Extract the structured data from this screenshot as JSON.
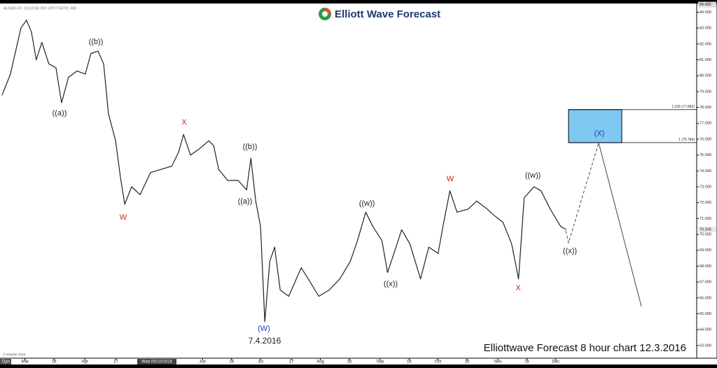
{
  "chart_data": {
    "type": "line",
    "title": "Elliott Wave Forecast",
    "subtitle": "AUGAG-FX, GOLD/SILVER SPOT RATIO, 480",
    "footer": "Elliottwave Forecast 8 hour chart 12.3.2016",
    "copyright": "© eSignal, 2016",
    "corner_label": "Dyn",
    "cursor_label": "Wed 05/10/2016",
    "xlim": [
      -13,
      348
    ],
    "ylim": [
      62.2,
      84.55
    ],
    "xticks": [
      {
        "value": 0,
        "label": "Mar"
      },
      {
        "value": 15,
        "label": "16"
      },
      {
        "value": 31,
        "label": "Apr"
      },
      {
        "value": 47,
        "label": "17"
      },
      {
        "value": 92,
        "label": "Jun"
      },
      {
        "value": 107,
        "label": "16"
      },
      {
        "value": 122,
        "label": "Jul"
      },
      {
        "value": 138,
        "label": "17"
      },
      {
        "value": 153,
        "label": "Aug"
      },
      {
        "value": 168,
        "label": "16"
      },
      {
        "value": 184,
        "label": "Sep"
      },
      {
        "value": 199,
        "label": "16"
      },
      {
        "value": 214,
        "label": "Oct"
      },
      {
        "value": 229,
        "label": "16"
      },
      {
        "value": 245,
        "label": "Nov"
      },
      {
        "value": 260,
        "label": "16"
      },
      {
        "value": 275,
        "label": "Dec"
      }
    ],
    "yticks": [
      {
        "value": 63,
        "label": "63.000"
      },
      {
        "value": 64,
        "label": "64.000"
      },
      {
        "value": 65,
        "label": "65.000"
      },
      {
        "value": 66,
        "label": "66.000"
      },
      {
        "value": 67,
        "label": "67.000"
      },
      {
        "value": 68,
        "label": "68.000"
      },
      {
        "value": 69,
        "label": "69.000"
      },
      {
        "value": 70,
        "label": "70.000"
      },
      {
        "value": 71,
        "label": "71.000"
      },
      {
        "value": 72,
        "label": "72.000"
      },
      {
        "value": 73,
        "label": "73.000"
      },
      {
        "value": 74,
        "label": "74.000"
      },
      {
        "value": 75,
        "label": "75.000"
      },
      {
        "value": 76,
        "label": "76.000"
      },
      {
        "value": 77,
        "label": "77.000"
      },
      {
        "value": 78,
        "label": "78.000"
      },
      {
        "value": 79,
        "label": "79.000"
      },
      {
        "value": 80,
        "label": "80.000"
      },
      {
        "value": 81,
        "label": "81.000"
      },
      {
        "value": 82,
        "label": "82.000"
      },
      {
        "value": 83,
        "label": "83.000"
      },
      {
        "value": 84,
        "label": "84.000"
      }
    ],
    "high_label": {
      "value": 84.482,
      "label": "84.482"
    },
    "last_price": {
      "value": 70.305,
      "label": "70.305"
    },
    "series": [
      {
        "name": "AUGAG-FX",
        "color": "#222222",
        "x": [
          -12,
          -7.6,
          -2.2,
          0.7,
          3.3,
          5.8,
          8.7,
          12.3,
          16,
          18.9,
          22.5,
          26.9,
          31.2,
          34.1,
          37.8,
          40.7,
          43.2,
          46.9,
          49.4,
          51.6,
          55.2,
          59.6,
          65,
          70.5,
          76,
          79.6,
          82.1,
          85.7,
          90.4,
          95.2,
          97.7,
          100.3,
          105,
          110.4,
          114.8,
          117,
          119.5,
          122,
          124.2,
          126.8,
          129.3,
          132.2,
          136.6,
          143.1,
          146.7,
          152.2,
          157.6,
          163.1,
          168.5,
          172.2,
          176.5,
          180.2,
          184.9,
          187.8,
          192.2,
          195.1,
          199.4,
          204.9,
          209.2,
          214,
          216.5,
          220.1,
          223.8,
          229.6,
          234,
          239.4,
          243,
          247.7,
          252.1,
          255.7,
          258.6,
          263.7,
          267.3,
          272.1,
          277.5,
          280.4
        ],
        "values": [
          78.76,
          80.1,
          83,
          83.5,
          82.75,
          81,
          82.1,
          80.75,
          80.5,
          78.3,
          79.9,
          80.3,
          80.1,
          81.4,
          81.55,
          80.75,
          77.6,
          75.9,
          73.6,
          71.9,
          73,
          72.5,
          73.9,
          74.1,
          74.3,
          75.2,
          76.3,
          75,
          75.4,
          75.9,
          75.6,
          74.1,
          73.4,
          73.4,
          72.8,
          74.8,
          72.1,
          70.5,
          64.5,
          68.3,
          69.2,
          66.5,
          66.1,
          67.9,
          67.2,
          66.1,
          66.5,
          67.2,
          68.3,
          69.6,
          71.4,
          70.5,
          69.6,
          67.6,
          69.2,
          70.3,
          69.4,
          67.2,
          69.2,
          68.8,
          70.5,
          72.75,
          71.4,
          71.6,
          72.1,
          71.6,
          71.2,
          70.75,
          69.4,
          67.2,
          72.3,
          73,
          72.75,
          71.6,
          70.5,
          70.305
        ]
      }
    ],
    "fib_levels": [
      {
        "value": 77.862,
        "label": "1.236 (77.862)"
      },
      {
        "value": 75.784,
        "label": "1 (75.784)"
      }
    ],
    "target_box_color": "#7ec8f2",
    "annotations": [
      {
        "text": "((a))",
        "color": "#222222"
      },
      {
        "text": "((b))",
        "color": "#222222"
      },
      {
        "text": "W",
        "color": "#d0201a"
      },
      {
        "text": "X",
        "color": "#d0201a"
      },
      {
        "text": "((b))",
        "color": "#222222"
      },
      {
        "text": "((a))",
        "color": "#222222"
      },
      {
        "text": "(W)",
        "color": "#1f3fae"
      },
      {
        "text": "7.4.2016",
        "color": "#222222"
      },
      {
        "text": "((w))",
        "color": "#222222"
      },
      {
        "text": "((x))",
        "color": "#222222"
      },
      {
        "text": "W",
        "color": "#d0201a"
      },
      {
        "text": "((w))",
        "color": "#222222"
      },
      {
        "text": "X",
        "color": "#d0201a"
      },
      {
        "text": "((x))",
        "color": "#222222"
      },
      {
        "text": "(X)",
        "color": "#1f3fae"
      }
    ]
  }
}
